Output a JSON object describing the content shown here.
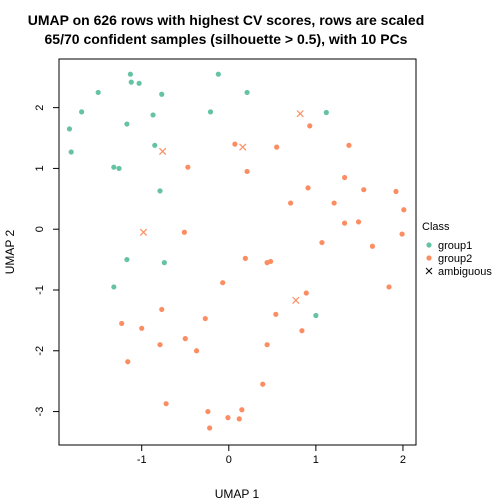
{
  "chart_data": {
    "type": "scatter",
    "title": "UMAP on 626 rows with highest CV scores, rows are scaled",
    "subtitle": "65/70 confident samples (silhouette > 0.5), with 10 PCs",
    "xlabel": "UMAP 1",
    "ylabel": "UMAP 2",
    "xlim": [
      -1.95,
      2.15
    ],
    "ylim": [
      -3.55,
      2.8
    ],
    "xticks": [
      -1,
      0,
      1,
      2
    ],
    "yticks": [
      -3,
      -2,
      -1,
      0,
      1,
      2
    ],
    "grid": false,
    "legend_position": "right",
    "legend_title": "Class",
    "series": [
      {
        "name": "group1",
        "color": "#66C2A5",
        "marker": "circle",
        "points": [
          [
            -1.13,
            2.55
          ],
          [
            -0.12,
            2.55
          ],
          [
            -1.12,
            2.42
          ],
          [
            -1.03,
            2.4
          ],
          [
            -1.5,
            2.25
          ],
          [
            -0.77,
            2.22
          ],
          [
            0.21,
            2.25
          ],
          [
            -1.69,
            1.93
          ],
          [
            -0.21,
            1.93
          ],
          [
            1.12,
            1.92
          ],
          [
            -0.87,
            1.88
          ],
          [
            -1.17,
            1.73
          ],
          [
            -1.83,
            1.65
          ],
          [
            -0.85,
            1.38
          ],
          [
            -1.81,
            1.27
          ],
          [
            -1.32,
            1.02
          ],
          [
            -1.26,
            1.0
          ],
          [
            -0.79,
            0.63
          ],
          [
            -1.17,
            -0.5
          ],
          [
            -0.74,
            -0.55
          ],
          [
            -1.32,
            -0.95
          ],
          [
            1.0,
            -1.42
          ]
        ]
      },
      {
        "name": "group2",
        "color": "#FC8D62",
        "marker": "circle",
        "points": [
          [
            0.93,
            1.7
          ],
          [
            0.07,
            1.4
          ],
          [
            1.38,
            1.38
          ],
          [
            0.55,
            1.35
          ],
          [
            -0.47,
            1.02
          ],
          [
            0.21,
            0.95
          ],
          [
            1.33,
            0.85
          ],
          [
            0.91,
            0.68
          ],
          [
            1.55,
            0.65
          ],
          [
            1.92,
            0.62
          ],
          [
            1.21,
            0.43
          ],
          [
            0.71,
            0.43
          ],
          [
            2.01,
            0.32
          ],
          [
            1.49,
            0.12
          ],
          [
            1.33,
            0.1
          ],
          [
            -0.51,
            -0.05
          ],
          [
            1.99,
            -0.08
          ],
          [
            1.07,
            -0.22
          ],
          [
            1.65,
            -0.28
          ],
          [
            0.19,
            -0.48
          ],
          [
            0.48,
            -0.53
          ],
          [
            0.44,
            -0.55
          ],
          [
            -0.07,
            -0.88
          ],
          [
            1.84,
            -0.95
          ],
          [
            0.89,
            -1.05
          ],
          [
            -0.77,
            -1.32
          ],
          [
            0.54,
            -1.4
          ],
          [
            -0.27,
            -1.47
          ],
          [
            -1.23,
            -1.55
          ],
          [
            -1.0,
            -1.63
          ],
          [
            0.84,
            -1.67
          ],
          [
            -0.5,
            -1.8
          ],
          [
            -0.79,
            -1.9
          ],
          [
            0.44,
            -1.9
          ],
          [
            -0.37,
            -2.0
          ],
          [
            -1.16,
            -2.18
          ],
          [
            0.39,
            -2.55
          ],
          [
            -0.72,
            -2.87
          ],
          [
            0.15,
            -2.97
          ],
          [
            -0.24,
            -3.0
          ],
          [
            -0.01,
            -3.1
          ],
          [
            0.12,
            -3.12
          ],
          [
            -0.22,
            -3.27
          ]
        ]
      },
      {
        "name": "ambiguous",
        "color": "#FC8D62",
        "marker": "x",
        "points": [
          [
            0.82,
            1.9
          ],
          [
            -0.76,
            1.28
          ],
          [
            0.16,
            1.35
          ],
          [
            -0.98,
            -0.05
          ],
          [
            0.77,
            -1.17
          ]
        ]
      }
    ],
    "legend": {
      "title": "Class",
      "items": [
        {
          "label": "group1",
          "marker": "circle",
          "color": "#66C2A5"
        },
        {
          "label": "group2",
          "marker": "circle",
          "color": "#FC8D62"
        },
        {
          "label": "ambiguous",
          "marker": "x",
          "color": "#000000"
        }
      ]
    }
  }
}
